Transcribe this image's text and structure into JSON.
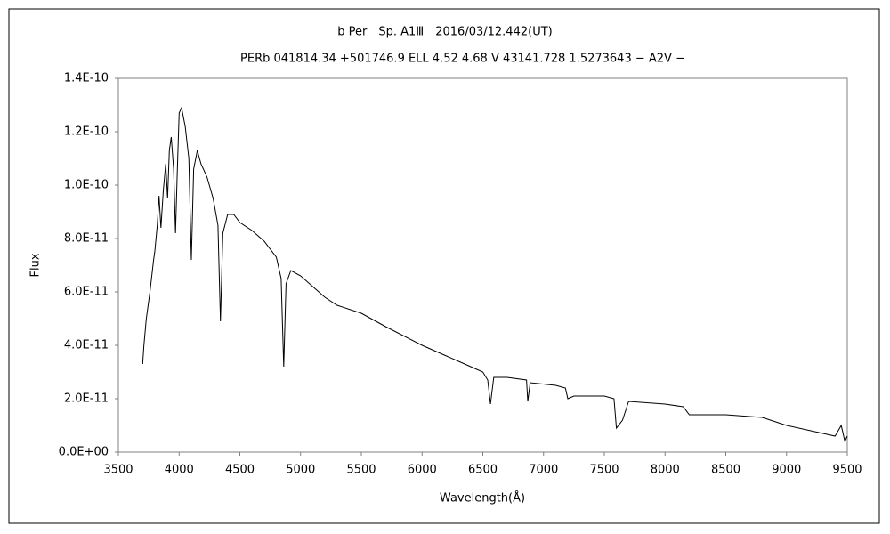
{
  "chart_data": {
    "type": "line",
    "title": "b Per　Sp. A1Ⅲ　2016/03/12.442(UT)",
    "subtitle": "PERb 041814.34 +501746.9 ELL 4.52 4.68 V 43141.728 1.5273643 − A2V −",
    "x_label": "Wavelength(Å)",
    "y_label": "Flux",
    "color": "#000000",
    "grid": false,
    "x": [
      3700,
      3710,
      3730,
      3760,
      3790,
      3800,
      3820,
      3835,
      3850,
      3870,
      3890,
      3905,
      3920,
      3935,
      3955,
      3970,
      3985,
      4000,
      4020,
      4050,
      4080,
      4101,
      4120,
      4150,
      4180,
      4230,
      4280,
      4320,
      4340,
      4360,
      4400,
      4450,
      4500,
      4600,
      4700,
      4800,
      4840,
      4861,
      4880,
      4920,
      5000,
      5100,
      5200,
      5300,
      5500,
      5700,
      6000,
      6200,
      6400,
      6500,
      6540,
      6563,
      6590,
      6700,
      6860,
      6870,
      6890,
      7100,
      7180,
      7200,
      7250,
      7500,
      7580,
      7600,
      7650,
      7700,
      8000,
      8150,
      8200,
      8500,
      8800,
      9000,
      9200,
      9300,
      9400,
      9450,
      9480,
      9500
    ],
    "values": [
      3.3e-11,
      4e-11,
      5e-11,
      6e-11,
      7.2e-11,
      7.5e-11,
      8.5e-11,
      9.6e-11,
      8.4e-11,
      9.8e-11,
      1.08e-10,
      9.5e-11,
      1.13e-10,
      1.18e-10,
      1.06e-10,
      8.2e-11,
      1.05e-10,
      1.27e-10,
      1.29e-10,
      1.22e-10,
      1.1e-10,
      7.2e-11,
      1.06e-10,
      1.13e-10,
      1.08e-10,
      1.03e-10,
      9.5e-11,
      8.5e-11,
      4.9e-11,
      8.2e-11,
      8.9e-11,
      8.9e-11,
      8.6e-11,
      8.3e-11,
      7.9e-11,
      7.3e-11,
      6.5e-11,
      3.2e-11,
      6.3e-11,
      6.8e-11,
      6.6e-11,
      6.2e-11,
      5.8e-11,
      5.5e-11,
      5.2e-11,
      4.7e-11,
      4e-11,
      3.6e-11,
      3.2e-11,
      3e-11,
      2.7e-11,
      1.8e-11,
      2.8e-11,
      2.8e-11,
      2.7e-11,
      1.9e-11,
      2.6e-11,
      2.5e-11,
      2.4e-11,
      2e-11,
      2.1e-11,
      2.1e-11,
      2e-11,
      9e-12,
      1.2e-11,
      1.9e-11,
      1.8e-11,
      1.7e-11,
      1.4e-11,
      1.4e-11,
      1.3e-11,
      1e-11,
      8e-12,
      7e-12,
      6e-12,
      1e-11,
      4e-12,
      6e-12
    ],
    "xlim": [
      3500,
      9500
    ],
    "xticks": [
      3500,
      4000,
      4500,
      5000,
      5500,
      6000,
      6500,
      7000,
      7500,
      8000,
      8500,
      9000,
      9500
    ],
    "ylim": [
      0,
      1.4e-10
    ],
    "yticks": [
      {
        "value": 0,
        "label": "0.0E+00"
      },
      {
        "value": 2e-11,
        "label": "2.0E-11"
      },
      {
        "value": 4e-11,
        "label": "4.0E-11"
      },
      {
        "value": 6e-11,
        "label": "6.0E-11"
      },
      {
        "value": 8e-11,
        "label": "8.0E-11"
      },
      {
        "value": 1e-10,
        "label": "1.0E-10"
      },
      {
        "value": 1.2e-10,
        "label": "1.2E-10"
      },
      {
        "value": 1.4e-10,
        "label": "1.4E-10"
      }
    ]
  }
}
